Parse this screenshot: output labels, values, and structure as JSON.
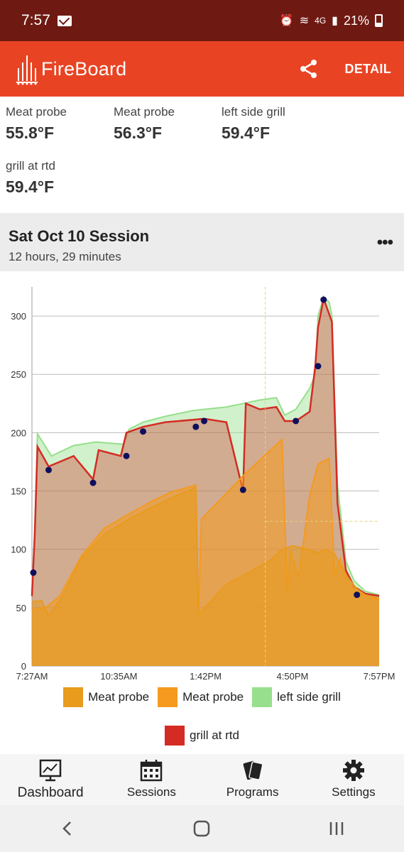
{
  "status_bar": {
    "time": "7:57",
    "network": "4G",
    "battery": "21%"
  },
  "app": {
    "name": "FireBoard",
    "detail_label": "DETAIL"
  },
  "probes": [
    {
      "name": "Meat probe",
      "value": "55.8°F"
    },
    {
      "name": "Meat probe",
      "value": "56.3°F"
    },
    {
      "name": "left side grill",
      "value": "59.4°F"
    },
    {
      "name": "grill at rtd",
      "value": "59.4°F"
    }
  ],
  "session": {
    "title": "Sat Oct 10 Session",
    "duration": "12 hours, 29 minutes"
  },
  "chart_data": {
    "type": "area",
    "x_tick_labels": [
      "7:27AM",
      "10:35AM",
      "1:42PM",
      "4:50PM",
      "7:57PM"
    ],
    "x_hours": [
      0,
      3.13,
      6.25,
      9.38,
      12.5
    ],
    "ylim": [
      0,
      325
    ],
    "y_ticks": [
      0,
      50,
      100,
      150,
      200,
      250,
      300
    ],
    "grid": "horizontal",
    "legend_position": "bottom",
    "series": [
      {
        "name": "Meat probe",
        "color": "#e89b1c",
        "points": [
          [
            0,
            55
          ],
          [
            0.35,
            56
          ],
          [
            0.6,
            43
          ],
          [
            1.1,
            60
          ],
          [
            1.8,
            93
          ],
          [
            2.6,
            113
          ],
          [
            3.5,
            126
          ],
          [
            4.4,
            137
          ],
          [
            5.2,
            146
          ],
          [
            5.9,
            153
          ],
          [
            6.0,
            44
          ],
          [
            6.3,
            52
          ],
          [
            7.0,
            70
          ],
          [
            7.8,
            80
          ],
          [
            8.6,
            91
          ],
          [
            9.0,
            100
          ],
          [
            9.4,
            103
          ],
          [
            9.9,
            100
          ],
          [
            10.3,
            97
          ],
          [
            10.6,
            100
          ],
          [
            10.9,
            96
          ],
          [
            11.1,
            86
          ],
          [
            11.4,
            75
          ],
          [
            11.7,
            66
          ],
          [
            12.0,
            61
          ],
          [
            12.5,
            58
          ]
        ]
      },
      {
        "name": "Meat probe",
        "color": "#f59a1e",
        "points": [
          [
            0,
            48
          ],
          [
            0.5,
            50
          ],
          [
            1.0,
            60
          ],
          [
            1.8,
            95
          ],
          [
            2.6,
            118
          ],
          [
            3.4,
            129
          ],
          [
            4.3,
            141
          ],
          [
            5.0,
            149
          ],
          [
            5.9,
            155
          ],
          [
            6.0,
            43
          ],
          [
            6.1,
            126
          ],
          [
            6.8,
            143
          ],
          [
            7.6,
            163
          ],
          [
            8.4,
            181
          ],
          [
            9.0,
            194
          ],
          [
            9.2,
            62
          ],
          [
            9.3,
            100
          ],
          [
            9.6,
            76
          ],
          [
            10.0,
            146
          ],
          [
            10.3,
            173
          ],
          [
            10.7,
            178
          ],
          [
            10.9,
            78
          ],
          [
            11.1,
            92
          ],
          [
            11.4,
            70
          ],
          [
            11.7,
            64
          ],
          [
            12.0,
            59
          ],
          [
            12.5,
            57
          ]
        ]
      },
      {
        "name": "left side grill",
        "color": "#97df8c",
        "points": [
          [
            0,
            65
          ],
          [
            0.1,
            115
          ],
          [
            0.2,
            199
          ],
          [
            0.7,
            180
          ],
          [
            1.5,
            189
          ],
          [
            2.3,
            192
          ],
          [
            3.3,
            190
          ],
          [
            3.5,
            203
          ],
          [
            4.0,
            209
          ],
          [
            4.8,
            214
          ],
          [
            5.8,
            219
          ],
          [
            6.2,
            220
          ],
          [
            7.0,
            222
          ],
          [
            7.6,
            225
          ],
          [
            8.2,
            228
          ],
          [
            8.8,
            230
          ],
          [
            9.1,
            215
          ],
          [
            9.5,
            220
          ],
          [
            10.0,
            238
          ],
          [
            10.2,
            250
          ],
          [
            10.3,
            300
          ],
          [
            10.5,
            316
          ],
          [
            10.7,
            312
          ],
          [
            10.8,
            300
          ],
          [
            11.0,
            155
          ],
          [
            11.3,
            90
          ],
          [
            11.6,
            73
          ],
          [
            12.0,
            64
          ],
          [
            12.5,
            61
          ]
        ]
      },
      {
        "name": "grill at rtd",
        "color": "#d42b24",
        "points": [
          [
            0,
            60
          ],
          [
            0.1,
            112
          ],
          [
            0.2,
            188
          ],
          [
            0.6,
            171
          ],
          [
            1.5,
            180
          ],
          [
            2.2,
            160
          ],
          [
            2.4,
            185
          ],
          [
            3.2,
            180
          ],
          [
            3.4,
            200
          ],
          [
            4.0,
            205
          ],
          [
            4.8,
            209
          ],
          [
            5.8,
            211
          ],
          [
            6.2,
            212
          ],
          [
            7.0,
            209
          ],
          [
            7.6,
            150
          ],
          [
            7.7,
            225
          ],
          [
            8.2,
            220
          ],
          [
            8.8,
            222
          ],
          [
            9.1,
            210
          ],
          [
            9.5,
            210
          ],
          [
            10.0,
            218
          ],
          [
            10.2,
            257
          ],
          [
            10.3,
            290
          ],
          [
            10.5,
            315
          ],
          [
            10.8,
            295
          ],
          [
            11.0,
            140
          ],
          [
            11.3,
            82
          ],
          [
            11.6,
            68
          ],
          [
            12.0,
            62
          ],
          [
            12.5,
            60
          ]
        ]
      }
    ],
    "markers": [
      [
        0.05,
        80
      ],
      [
        0.6,
        168
      ],
      [
        2.2,
        157
      ],
      [
        3.4,
        180
      ],
      [
        4.0,
        201
      ],
      [
        5.9,
        205
      ],
      [
        6.2,
        210
      ],
      [
        7.6,
        151
      ],
      [
        9.5,
        210
      ],
      [
        10.3,
        257
      ],
      [
        10.5,
        314
      ],
      [
        11.7,
        61
      ]
    ]
  },
  "nav": {
    "dashboard": "Dashboard",
    "sessions": "Sessions",
    "programs": "Programs",
    "settings": "Settings"
  }
}
